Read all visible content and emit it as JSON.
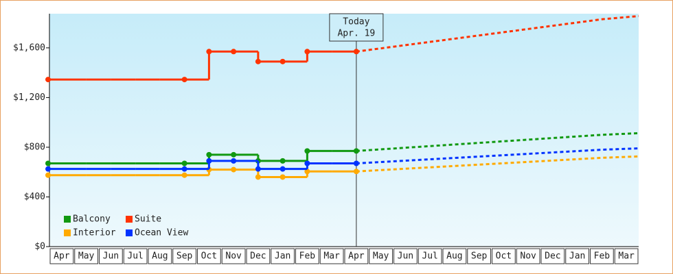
{
  "chart_data": {
    "type": "step-line",
    "categories": [
      "Apr",
      "May",
      "Jun",
      "Jul",
      "Aug",
      "Sep",
      "Oct",
      "Nov",
      "Dec",
      "Jan",
      "Feb",
      "Mar",
      "Apr",
      "May",
      "Jun",
      "Jul",
      "Aug",
      "Sep",
      "Oct",
      "Nov",
      "Dec",
      "Jan",
      "Feb",
      "Mar"
    ],
    "ylim": [
      0,
      1875
    ],
    "yticks": [
      {
        "value": 0,
        "label": "$0"
      },
      {
        "value": 400,
        "label": "$400"
      },
      {
        "value": 800,
        "label": "$800"
      },
      {
        "value": 1200,
        "label": "$1,200"
      },
      {
        "value": 1600,
        "label": "$1,600"
      }
    ],
    "today": [
      "Today",
      "Apr. 19"
    ],
    "series": [
      {
        "name": "Balcony",
        "color": "#119911",
        "values": [
          670,
          670,
          670,
          670,
          670,
          670,
          740,
          740,
          690,
          690,
          770,
          770,
          770,
          null,
          null,
          null,
          null,
          null,
          null,
          null,
          null,
          null,
          null,
          null
        ],
        "forecast": [
          null,
          null,
          null,
          null,
          null,
          null,
          null,
          null,
          null,
          null,
          null,
          null,
          770,
          783,
          796,
          809,
          822,
          835,
          848,
          861,
          874,
          887,
          900,
          913
        ]
      },
      {
        "name": "Suite",
        "color": "#ff3300",
        "values": [
          1345,
          1345,
          1345,
          1345,
          1345,
          1345,
          1570,
          1570,
          1490,
          1490,
          1570,
          1570,
          1570,
          null,
          null,
          null,
          null,
          null,
          null,
          null,
          null,
          null,
          null,
          null
        ],
        "forecast": [
          null,
          null,
          null,
          null,
          null,
          null,
          null,
          null,
          null,
          null,
          null,
          null,
          1570,
          1596,
          1622,
          1648,
          1674,
          1700,
          1726,
          1752,
          1778,
          1804,
          1830,
          1856
        ]
      },
      {
        "name": "Interior",
        "color": "#ffaa00",
        "values": [
          575,
          575,
          575,
          575,
          575,
          575,
          620,
          620,
          560,
          560,
          605,
          605,
          605,
          null,
          null,
          null,
          null,
          null,
          null,
          null,
          null,
          null,
          null,
          null
        ],
        "forecast": [
          null,
          null,
          null,
          null,
          null,
          null,
          null,
          null,
          null,
          null,
          null,
          null,
          605,
          616,
          627,
          638,
          649,
          660,
          671,
          682,
          693,
          704,
          715,
          726
        ]
      },
      {
        "name": "Ocean View",
        "color": "#0033ff",
        "values": [
          625,
          625,
          625,
          625,
          625,
          625,
          690,
          690,
          625,
          625,
          670,
          670,
          670,
          null,
          null,
          null,
          null,
          null,
          null,
          null,
          null,
          null,
          null,
          null
        ],
        "forecast": [
          null,
          null,
          null,
          null,
          null,
          null,
          null,
          null,
          null,
          null,
          null,
          null,
          670,
          681,
          692,
          703,
          714,
          725,
          736,
          747,
          758,
          769,
          780,
          791
        ]
      }
    ]
  }
}
